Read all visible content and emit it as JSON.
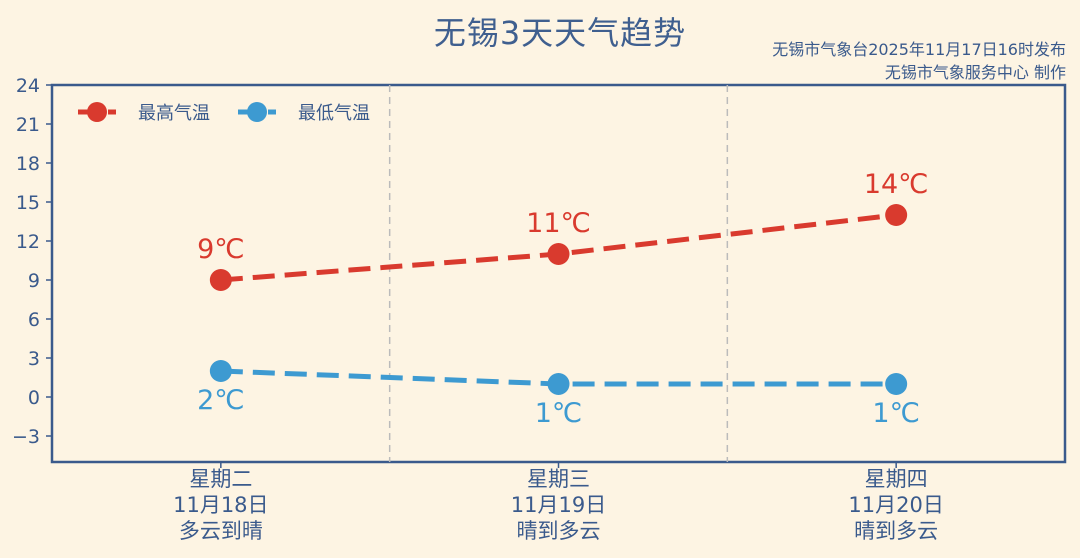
{
  "title": "无锡3天天气趋势",
  "source_line1": "无锡市气象台2025年11月17日16时发布",
  "source_line2": "无锡市气象服务中心  制作",
  "colors": {
    "high": "#d93a2e",
    "low": "#3d9ad1",
    "axis": "#3a5a8c",
    "bg": "#fdf4e3"
  },
  "chart_data": {
    "type": "line",
    "categories": [
      {
        "weekday": "星期二",
        "date": "11月18日",
        "weather": "多云到晴"
      },
      {
        "weekday": "星期三",
        "date": "11月19日",
        "weather": "晴到多云"
      },
      {
        "weekday": "星期四",
        "date": "11月20日",
        "weather": "晴到多云"
      }
    ],
    "series": [
      {
        "name": "最高气温",
        "values": [
          9,
          11,
          14
        ],
        "labels": [
          "9℃",
          "11℃",
          "14℃"
        ],
        "color": "#d93a2e"
      },
      {
        "name": "最低气温",
        "values": [
          2,
          1,
          1
        ],
        "labels": [
          "2℃",
          "1℃",
          "1℃"
        ],
        "color": "#3d9ad1"
      }
    ],
    "yticks": [
      24,
      21,
      18,
      15,
      12,
      9,
      6,
      3,
      0,
      -3
    ],
    "ylim": [
      -5,
      24
    ],
    "legend": "top-left",
    "grid": "vertical dashed separators"
  }
}
